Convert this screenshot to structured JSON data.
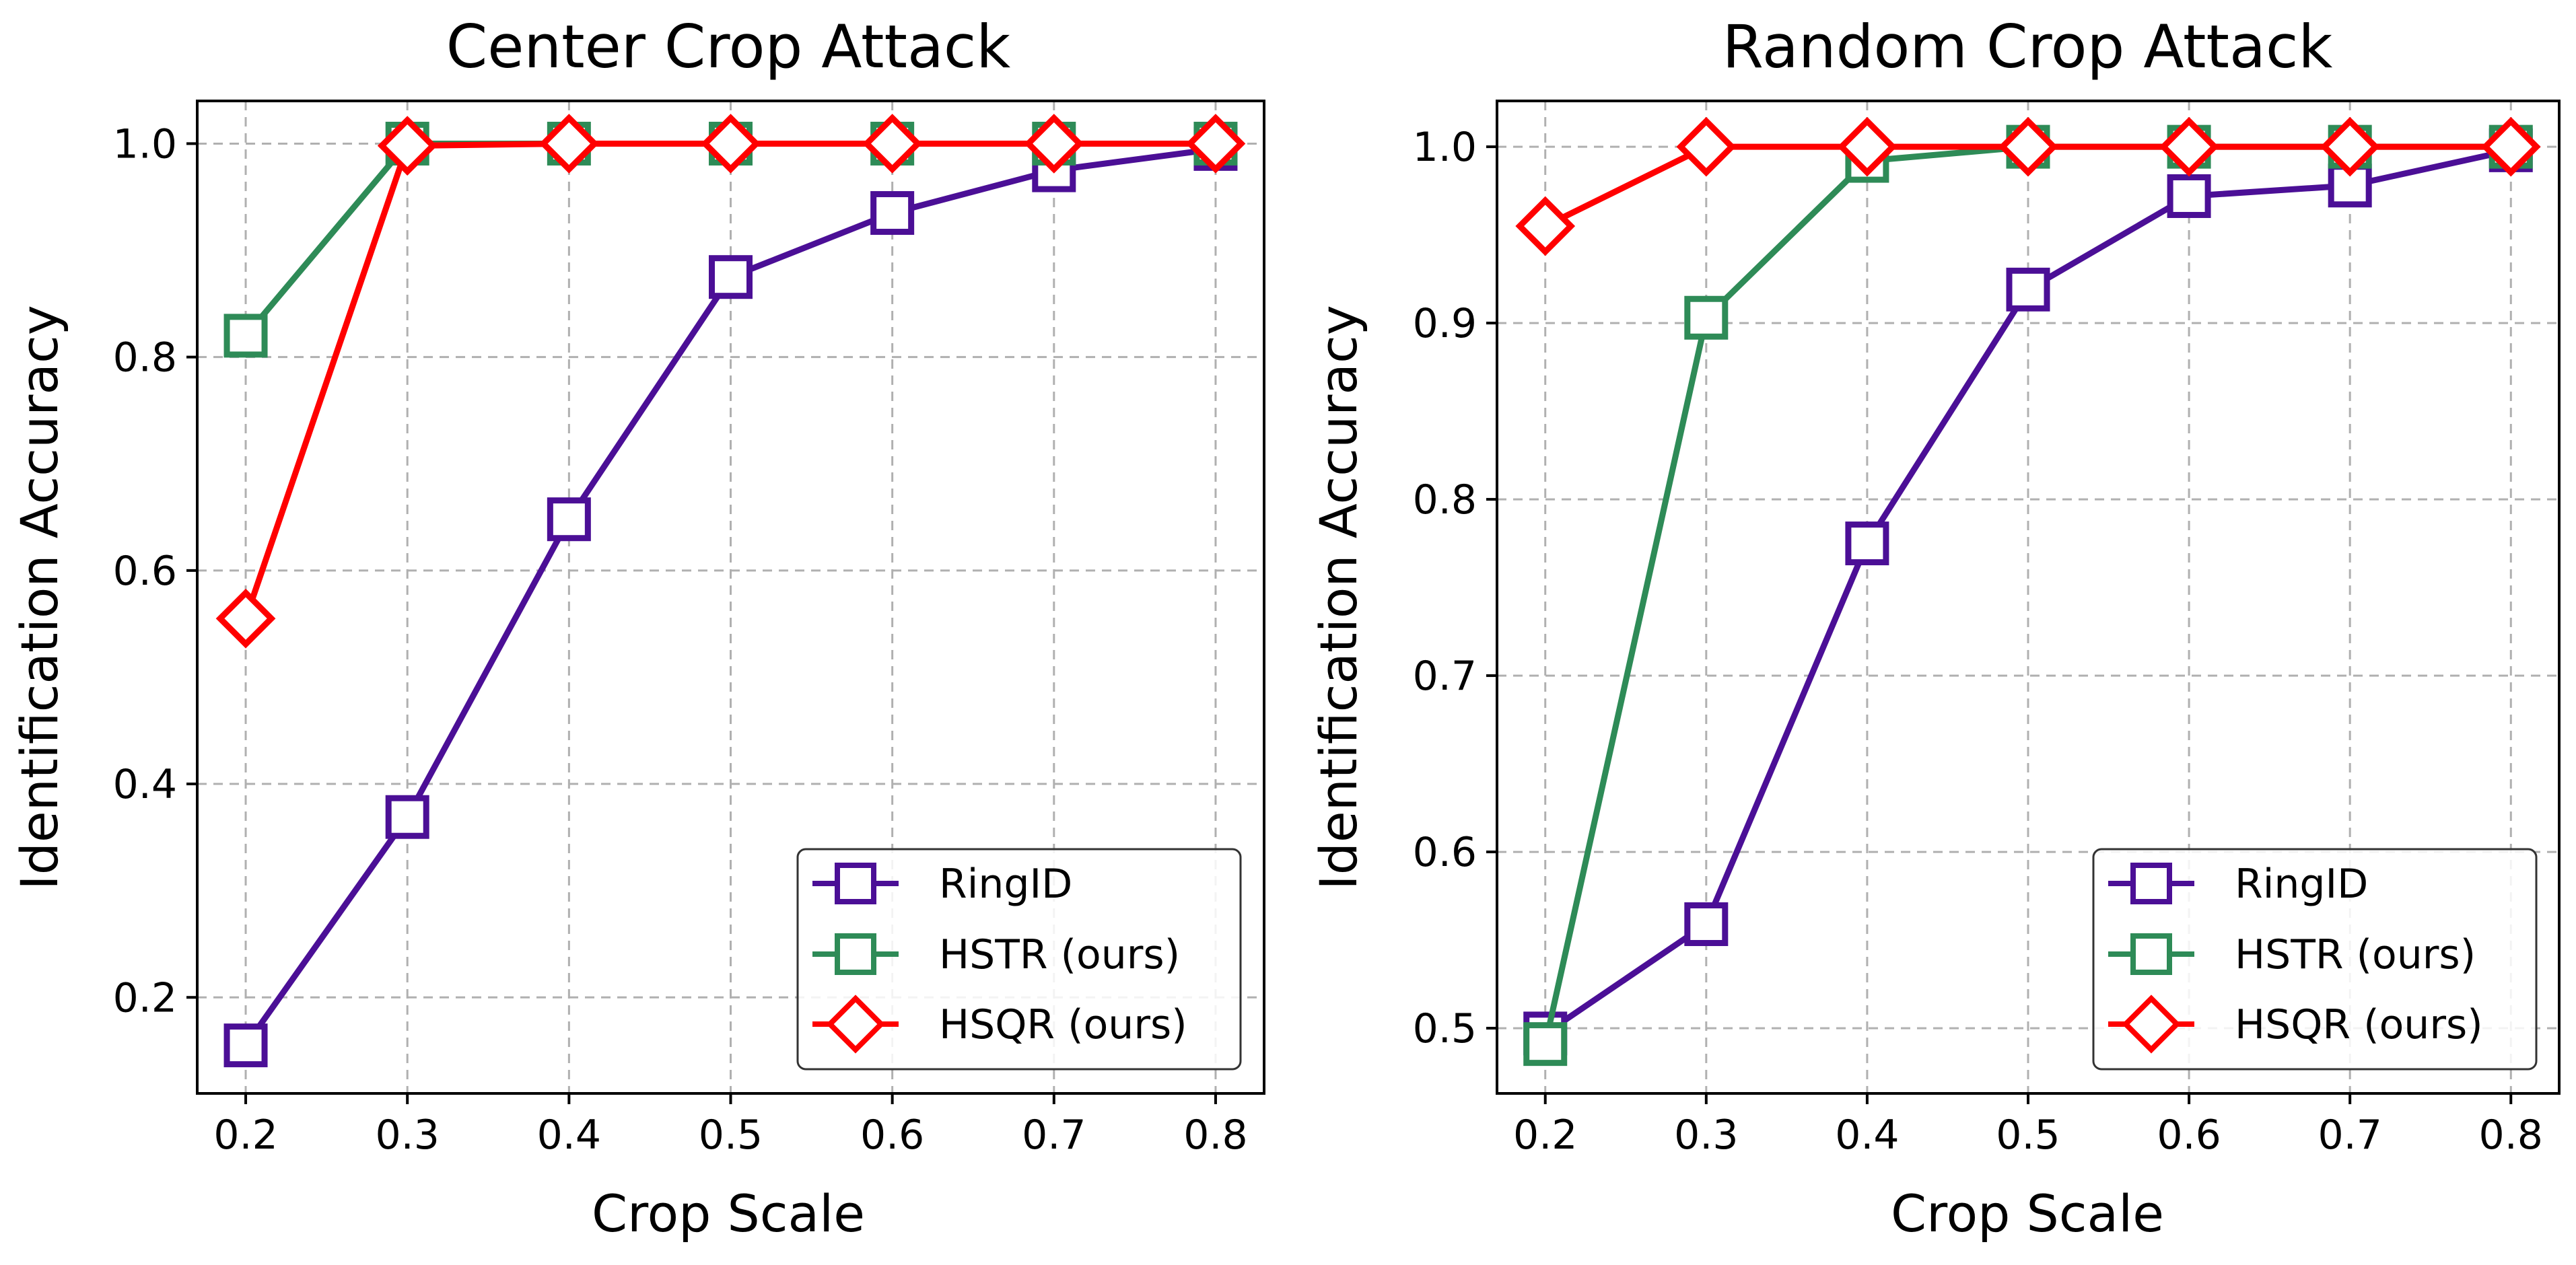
{
  "chart_data": [
    {
      "type": "line",
      "title": "Center Crop Attack",
      "xlabel": "Crop Scale",
      "ylabel": "Identification Accuracy",
      "x": [
        0.2,
        0.3,
        0.4,
        0.5,
        0.6,
        0.7,
        0.8
      ],
      "xlim": [
        0.17,
        0.83
      ],
      "ylim": [
        0.11,
        1.04
      ],
      "xticks": [
        "0.2",
        "0.3",
        "0.4",
        "0.5",
        "0.6",
        "0.7",
        "0.8"
      ],
      "yticks": [
        "0.2",
        "0.4",
        "0.6",
        "0.8",
        "1.0"
      ],
      "grid": true,
      "legend_position": "lower-right",
      "series": [
        {
          "name": "RingID",
          "color": "#4b0f96",
          "marker": "square",
          "values": [
            0.155,
            0.369,
            0.648,
            0.875,
            0.935,
            0.975,
            0.995
          ]
        },
        {
          "name": "HSTR (ours)",
          "color": "#2e8b57",
          "marker": "square",
          "values": [
            0.82,
            1.0,
            1.0,
            1.0,
            1.0,
            1.0,
            1.0
          ]
        },
        {
          "name": "HSQR (ours)",
          "color": "#ff0000",
          "marker": "diamond",
          "values": [
            0.555,
            0.998,
            1.0,
            1.0,
            1.0,
            1.0,
            1.0
          ]
        }
      ]
    },
    {
      "type": "line",
      "title": "Random Crop Attack",
      "xlabel": "Crop Scale",
      "ylabel": "Identification Accuracy",
      "x": [
        0.2,
        0.3,
        0.4,
        0.5,
        0.6,
        0.7,
        0.8
      ],
      "xlim": [
        0.17,
        0.83
      ],
      "ylim": [
        0.463,
        1.026
      ],
      "xticks": [
        "0.2",
        "0.3",
        "0.4",
        "0.5",
        "0.6",
        "0.7",
        "0.8"
      ],
      "yticks": [
        "0.5",
        "0.6",
        "0.7",
        "0.8",
        "0.9",
        "1.0"
      ],
      "grid": true,
      "legend_position": "lower-right",
      "series": [
        {
          "name": "RingID",
          "color": "#4b0f96",
          "marker": "square",
          "values": [
            0.497,
            0.559,
            0.775,
            0.919,
            0.972,
            0.978,
            0.998
          ]
        },
        {
          "name": "HSTR (ours)",
          "color": "#2e8b57",
          "marker": "square",
          "values": [
            0.491,
            0.903,
            0.992,
            1.0,
            1.0,
            1.0,
            1.0
          ]
        },
        {
          "name": "HSQR (ours)",
          "color": "#ff0000",
          "marker": "diamond",
          "values": [
            0.955,
            1.0,
            1.0,
            1.0,
            1.0,
            1.0,
            1.0
          ]
        }
      ]
    }
  ]
}
